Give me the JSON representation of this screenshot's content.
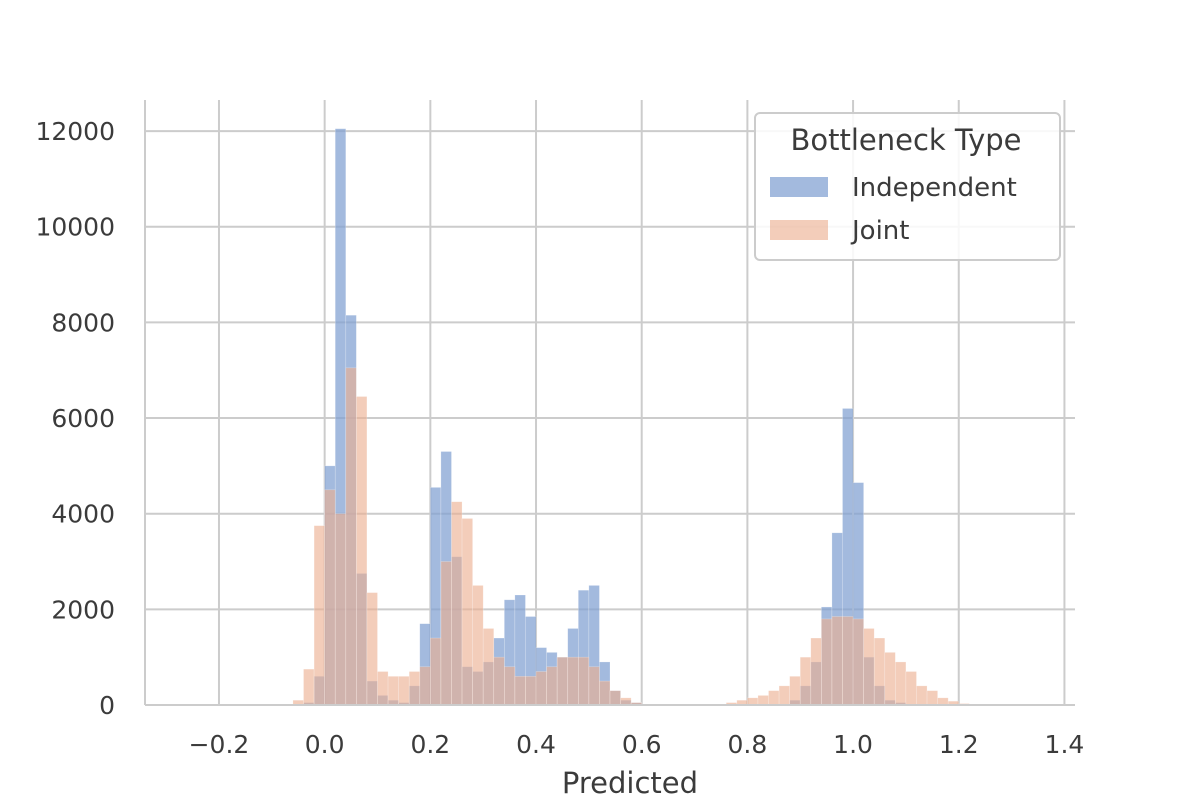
{
  "chart_data": {
    "type": "histogram",
    "title": "",
    "xlabel": "Predicted",
    "ylabel": "",
    "xlim": [
      -0.34,
      1.42
    ],
    "ylim": [
      0,
      12650
    ],
    "x_ticks": [
      -0.2,
      0.0,
      0.2,
      0.4,
      0.6,
      0.8,
      1.0,
      1.2,
      1.4
    ],
    "x_tick_labels": [
      "−0.2",
      "0.0",
      "0.2",
      "0.4",
      "0.6",
      "0.8",
      "1.0",
      "1.2",
      "1.4"
    ],
    "y_ticks": [
      0,
      2000,
      4000,
      6000,
      8000,
      10000,
      12000
    ],
    "y_tick_labels": [
      "0",
      "2000",
      "4000",
      "6000",
      "8000",
      "10000",
      "12000"
    ],
    "grid": true,
    "bin_width": 0.02,
    "legend": {
      "title": "Bottleneck Type",
      "placement": "top-right",
      "entries": [
        "Independent",
        "Joint"
      ]
    },
    "series": [
      {
        "name": "Independent",
        "color": "#7f9fd1",
        "bin_starts": [
          -0.04,
          -0.02,
          0.0,
          0.02,
          0.04,
          0.06,
          0.08,
          0.1,
          0.12,
          0.14,
          0.16,
          0.18,
          0.2,
          0.22,
          0.24,
          0.26,
          0.28,
          0.3,
          0.32,
          0.34,
          0.36,
          0.38,
          0.4,
          0.42,
          0.44,
          0.46,
          0.48,
          0.5,
          0.52,
          0.54,
          0.56,
          0.58,
          0.88,
          0.9,
          0.92,
          0.94,
          0.96,
          0.98,
          1.0,
          1.02,
          1.04,
          1.06,
          1.08,
          1.1,
          1.12
        ],
        "counts": [
          50,
          600,
          5000,
          12050,
          8150,
          2750,
          500,
          200,
          100,
          50,
          400,
          1700,
          4550,
          5300,
          3100,
          800,
          700,
          900,
          1400,
          2200,
          2300,
          1850,
          1200,
          1100,
          1000,
          1600,
          2400,
          2500,
          900,
          300,
          100,
          50,
          100,
          400,
          900,
          2050,
          3600,
          6200,
          4650,
          1000,
          400,
          100,
          50,
          20,
          10
        ]
      },
      {
        "name": "Joint",
        "color": "#ecae90",
        "bin_starts": [
          -0.06,
          -0.04,
          -0.02,
          0.0,
          0.02,
          0.04,
          0.06,
          0.08,
          0.1,
          0.12,
          0.14,
          0.16,
          0.18,
          0.2,
          0.22,
          0.24,
          0.26,
          0.28,
          0.3,
          0.32,
          0.34,
          0.36,
          0.38,
          0.4,
          0.42,
          0.44,
          0.46,
          0.48,
          0.5,
          0.52,
          0.54,
          0.56,
          0.58,
          0.6,
          0.76,
          0.78,
          0.8,
          0.82,
          0.84,
          0.86,
          0.88,
          0.9,
          0.92,
          0.94,
          0.96,
          0.98,
          1.0,
          1.02,
          1.04,
          1.06,
          1.08,
          1.1,
          1.12,
          1.14,
          1.16,
          1.18,
          1.2
        ],
        "counts": [
          100,
          750,
          3750,
          4500,
          4000,
          7050,
          6450,
          2350,
          700,
          600,
          600,
          700,
          800,
          1400,
          3000,
          4250,
          3900,
          2500,
          1600,
          1000,
          800,
          600,
          600,
          700,
          800,
          1000,
          1000,
          1000,
          800,
          500,
          300,
          150,
          50,
          20,
          50,
          100,
          150,
          200,
          300,
          400,
          600,
          1000,
          1400,
          1800,
          1850,
          1850,
          1800,
          1600,
          1400,
          1100,
          900,
          700,
          400,
          300,
          150,
          80,
          30
        ]
      }
    ]
  }
}
